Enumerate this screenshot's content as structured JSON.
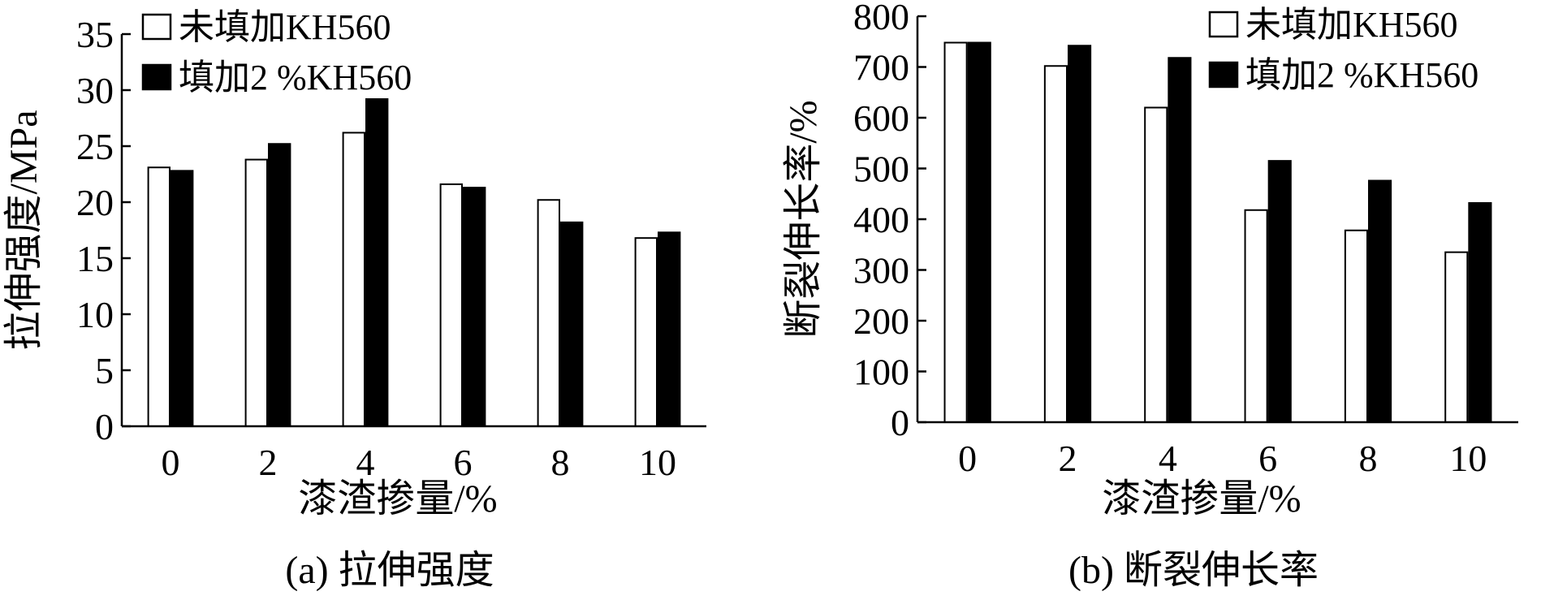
{
  "colors": {
    "series_unfilled_fill": "#ffffff",
    "series_filled_fill": "#000000",
    "stroke": "#000000"
  },
  "chart_data": [
    {
      "type": "bar",
      "caption": "(a) 拉伸强度",
      "xlabel": "漆渣掺量/%",
      "ylabel": "拉伸强度/MPa",
      "categories": [
        "0",
        "2",
        "4",
        "6",
        "8",
        "10"
      ],
      "ylim": [
        0,
        35
      ],
      "yticks": [
        0,
        5,
        10,
        15,
        20,
        25,
        30,
        35
      ],
      "grid": false,
      "legend_position": "top-left",
      "series": [
        {
          "name": "未填加KH560",
          "values": [
            23.1,
            23.8,
            26.2,
            21.6,
            20.2,
            16.8
          ]
        },
        {
          "name": "填加2 %KH560",
          "values": [
            22.8,
            25.2,
            29.2,
            21.3,
            18.2,
            17.3
          ]
        }
      ]
    },
    {
      "type": "bar",
      "caption": "(b) 断裂伸长率",
      "xlabel": "漆渣掺量/%",
      "ylabel": "断裂伸长率/%",
      "categories": [
        "0",
        "2",
        "4",
        "6",
        "8",
        "10"
      ],
      "ylim": [
        0,
        800
      ],
      "yticks": [
        0,
        100,
        200,
        300,
        400,
        500,
        600,
        700,
        800
      ],
      "grid": false,
      "legend_position": "top-right",
      "series": [
        {
          "name": "未填加KH560",
          "values": [
            748,
            702,
            620,
            418,
            378,
            335
          ]
        },
        {
          "name": "填加2 %KH560",
          "values": [
            748,
            742,
            718,
            515,
            476,
            432
          ]
        }
      ]
    }
  ]
}
